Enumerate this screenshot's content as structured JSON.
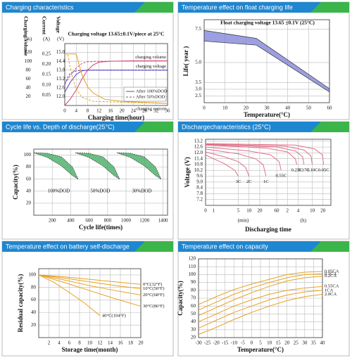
{
  "chart_data": [
    {
      "type": "line",
      "title": "Charging characteristics",
      "subtitle": "Charging voltage 13.65±0.1V/piece at 25°C",
      "xlabel": "Charging time(hour)",
      "xlim": [
        0,
        36
      ],
      "xticks": [
        0,
        4,
        8,
        12,
        16,
        20,
        24,
        28,
        32,
        36
      ],
      "grid": true,
      "ylabel": "Charging Volume",
      "yunit": "(%)",
      "ylim": [
        0,
        140
      ],
      "yticks": [
        20,
        40,
        60,
        80,
        100,
        120
      ],
      "y2label": "Current",
      "y2unit": "(A)",
      "y2lim": [
        0,
        0.3
      ],
      "y2ticks": [
        0.05,
        {
          "value": 0.1,
          "label": "0.10"
        },
        0.15,
        {
          "value": 0.2,
          "label": "0.20"
        },
        0.25
      ],
      "y3label": "Voltage",
      "y3unit": "(V)",
      "y3lim": [
        11.4,
        15.6
      ],
      "y3ticks": [
        {
          "value": 12,
          "label": "12.0"
        },
        12.6,
        13.2,
        13.8,
        14.4,
        {
          "value": 15,
          "label": "15.0"
        }
      ],
      "line_styles": [
        {
          "label": "After 100%DOD",
          "dash": "solid"
        },
        {
          "label": "After 50%DOD",
          "dash": "dashed"
        }
      ],
      "series": [
        {
          "name": "charging volume",
          "color": "#d8406a",
          "axis": "y",
          "dash": "solid",
          "x": [
            0,
            2,
            4,
            6,
            8,
            10,
            12,
            16,
            24,
            36
          ],
          "values": [
            0,
            15,
            35,
            60,
            80,
            92,
            98,
            100,
            101,
            101
          ]
        },
        {
          "color": "#d8406a",
          "axis": "y",
          "dash": "dashed",
          "x": [
            0,
            2,
            4,
            6,
            8,
            12,
            36
          ],
          "values": [
            50,
            68,
            85,
            95,
            99,
            100,
            101
          ]
        },
        {
          "name": "charging voltage",
          "color": "#5a3cc0",
          "axis": "y3",
          "dash": "solid",
          "x": [
            0,
            2,
            4,
            6,
            8,
            12,
            36
          ],
          "values": [
            12.3,
            13.0,
            13.5,
            13.75,
            13.8,
            13.8,
            13.8
          ]
        },
        {
          "color": "#5a3cc0",
          "axis": "y3",
          "dash": "dashed",
          "x": [
            0,
            1,
            2,
            4,
            8,
            36
          ],
          "values": [
            12.8,
            13.3,
            13.6,
            13.75,
            13.8,
            13.8
          ]
        },
        {
          "name": "charging current",
          "color": "#e0a020",
          "axis": "y2",
          "dash": "solid",
          "x": [
            0,
            4,
            5,
            6,
            8,
            10,
            14,
            20,
            28,
            36
          ],
          "values": [
            0.25,
            0.25,
            0.2,
            0.15,
            0.09,
            0.06,
            0.03,
            0.02,
            0.015,
            0.01
          ]
        },
        {
          "color": "#e0a020",
          "axis": "y2",
          "dash": "dashed",
          "x": [
            0,
            1,
            2,
            3,
            4,
            6,
            10,
            36
          ],
          "values": [
            0.25,
            0.25,
            0.18,
            0.12,
            0.08,
            0.04,
            0.02,
            0.01
          ]
        }
      ]
    },
    {
      "type": "band",
      "title": "Temperature effect on float charging life",
      "subtitle": "Float charging voltage  13.65 ±0.1V (25°C)",
      "xlabel": "Temperature(°C)",
      "xlim": [
        0,
        60
      ],
      "xticks": [
        0,
        10,
        20,
        30,
        40,
        50,
        60
      ],
      "grid": true,
      "ylabel": "Life( year )",
      "ylim": [
        2,
        8.2
      ],
      "yticks": [
        2.5,
        {
          "value": 3,
          "label": "3.0"
        },
        3.5,
        {
          "value": 5,
          "label": "5.0"
        },
        7.5
      ],
      "series": [
        {
          "color": "#7b7fd6",
          "x": [
            0,
            25,
            60
          ],
          "upper": [
            7.4,
            6.8,
            3.05
          ],
          "lower": [
            6.6,
            6.3,
            2.8
          ]
        }
      ]
    },
    {
      "type": "band",
      "title": "Cycle life vs. Depth of discharge(25°C)",
      "xlabel": "Cycle life(times)",
      "xlim": [
        0,
        1450
      ],
      "xticks": [
        200,
        400,
        600,
        800,
        1000,
        1200,
        1400
      ],
      "grid": true,
      "ylabel": "Capacity(%)",
      "ylim": [
        0,
        110
      ],
      "yticks": [
        20,
        40,
        60,
        80,
        100
      ],
      "series": [
        {
          "name": "100%DOD",
          "color": "#3aa85a",
          "x": [
            0,
            150,
            300,
            420,
            480
          ],
          "upper": [
            104,
            103,
            97,
            80,
            60
          ],
          "lower": [
            104,
            96,
            82,
            66,
            60
          ]
        },
        {
          "name": "50%DOD",
          "color": "#3aa85a",
          "x": [
            450,
            600,
            750,
            870,
            930
          ],
          "upper": [
            104,
            103,
            97,
            80,
            60
          ],
          "lower": [
            104,
            96,
            82,
            66,
            60
          ]
        },
        {
          "name": "30%DOD",
          "color": "#3aa85a",
          "x": [
            900,
            1050,
            1200,
            1320,
            1380
          ],
          "upper": [
            104,
            103,
            97,
            80,
            60
          ],
          "lower": [
            104,
            96,
            82,
            66,
            60
          ]
        }
      ]
    },
    {
      "type": "line",
      "title": "Dischargecharacteristics (25°C)",
      "xlabel": "Discharging time",
      "xlog": true,
      "xlim": [
        0.6,
        2000
      ],
      "origin_label": "0",
      "xunits": [
        "(min)",
        "(h)"
      ],
      "xticks": [
        1,
        5,
        10,
        20,
        60,
        {
          "value": 120,
          "label": "2"
        },
        {
          "value": 240,
          "label": "4"
        },
        {
          "value": 600,
          "label": "10"
        },
        {
          "value": 1200,
          "label": "20"
        }
      ],
      "grid": true,
      "ylabel": "Voltage (V)",
      "ylim": [
        6.6,
        13.4
      ],
      "yticks": [
        7.2,
        7.8,
        8.4,
        {
          "value": 9,
          "label": "9.0"
        },
        9.6,
        10.2,
        10.8,
        11.4,
        {
          "value": 12,
          "label": "12.0"
        },
        12.6,
        13.2
      ],
      "color": "#e07088",
      "series": [
        {
          "name": "3C",
          "x": [
            0.6,
            1,
            2,
            4,
            5
          ],
          "values": [
            11.8,
            11.4,
            10.9,
            10.2,
            9.6
          ]
        },
        {
          "name": "2C",
          "x": [
            0.6,
            2,
            5,
            8,
            10
          ],
          "values": [
            12.1,
            11.6,
            11.1,
            10.5,
            9.6
          ]
        },
        {
          "name": "1C",
          "x": [
            0.6,
            5,
            15,
            25,
            30
          ],
          "values": [
            12.4,
            11.9,
            11.4,
            10.8,
            9.6
          ]
        },
        {
          "name": "0.55C",
          "x": [
            0.6,
            10,
            40,
            70,
            80
          ],
          "values": [
            12.6,
            12.2,
            11.8,
            11.1,
            10.2
          ]
        },
        {
          "name": "0.25C",
          "x": [
            0.6,
            30,
            120,
            200,
            220
          ],
          "values": [
            12.8,
            12.5,
            12.1,
            11.4,
            10.8
          ]
        },
        {
          "name": "0.17C",
          "x": [
            0.6,
            60,
            200,
            320,
            350
          ],
          "values": [
            12.85,
            12.6,
            12.2,
            11.6,
            10.8
          ]
        },
        {
          "name": "0.10C",
          "x": [
            0.6,
            100,
            350,
            550,
            600
          ],
          "values": [
            12.9,
            12.7,
            12.3,
            11.7,
            10.8
          ]
        },
        {
          "name": "0.05C",
          "x": [
            0.6,
            200,
            700,
            1150,
            1250
          ],
          "values": [
            12.95,
            12.8,
            12.4,
            11.8,
            10.8
          ]
        }
      ]
    },
    {
      "type": "line",
      "title": "Temperature effect on battery self-discharge",
      "xlabel": "Storage time(month)",
      "xlim": [
        0,
        20
      ],
      "xticks": [
        2,
        4,
        6,
        8,
        10,
        12,
        14,
        16,
        18,
        20
      ],
      "grid": true,
      "ylabel": "Residual capacity(%)",
      "ylim": [
        0,
        110
      ],
      "yticks": [
        20,
        40,
        60,
        80,
        100
      ],
      "color": "#e8a020",
      "series": [
        {
          "name": "0°C(32°F)",
          "x": [
            0,
            5,
            10,
            15,
            20
          ],
          "values": [
            100,
            97,
            93,
            89,
            85
          ]
        },
        {
          "name": "10°C(50°F)",
          "x": [
            0,
            5,
            10,
            15,
            20
          ],
          "values": [
            100,
            95,
            89,
            83,
            78
          ]
        },
        {
          "name": "20°C(68°F)",
          "x": [
            0,
            5,
            10,
            15,
            20
          ],
          "values": [
            100,
            92,
            83,
            75,
            68
          ]
        },
        {
          "name": "30°C(86°F)",
          "x": [
            0,
            5,
            10,
            15,
            20
          ],
          "values": [
            100,
            88,
            75,
            62,
            50
          ]
        },
        {
          "name": "40°C(104°F)",
          "x": [
            0,
            3,
            6,
            9,
            12
          ],
          "values": [
            100,
            88,
            72,
            55,
            35
          ]
        }
      ]
    },
    {
      "type": "line",
      "title": "Temperature effect on capacity",
      "xlabel": "Temperature(°C)",
      "xlim": [
        -30,
        40
      ],
      "xticks": [
        -30,
        -25,
        -20,
        -15,
        -10,
        -5,
        0,
        5,
        10,
        15,
        20,
        25,
        30,
        35,
        40
      ],
      "grid": true,
      "ylabel": "Capacity(%)",
      "ylim": [
        20,
        120
      ],
      "yticks": [
        20,
        30,
        40,
        50,
        60,
        70,
        80,
        90,
        100,
        110,
        120
      ],
      "color": "#e8a020",
      "series": [
        {
          "name": "0.05CA",
          "x": [
            -30,
            -20,
            -10,
            0,
            10,
            20,
            30,
            40
          ],
          "values": [
            62,
            72,
            81,
            88,
            94,
            100,
            103,
            104
          ]
        },
        {
          "name": "0.1CA",
          "x": [
            -30,
            -20,
            -10,
            0,
            10,
            20,
            30,
            40
          ],
          "values": [
            55,
            65,
            75,
            83,
            90,
            96,
            100,
            101
          ]
        },
        {
          "name": "0.2CA",
          "x": [
            -30,
            -20,
            -10,
            0,
            10,
            20,
            30,
            40
          ],
          "values": [
            48,
            58,
            68,
            77,
            85,
            92,
            96,
            98
          ]
        },
        {
          "name": "0.55CA",
          "x": [
            -30,
            -20,
            -10,
            0,
            10,
            20,
            30,
            40
          ],
          "values": [
            40,
            50,
            60,
            68,
            75,
            80,
            83,
            85
          ]
        },
        {
          "name": "1CA",
          "x": [
            -30,
            -20,
            -10,
            0,
            10,
            20,
            30,
            40
          ],
          "values": [
            32,
            42,
            52,
            60,
            68,
            74,
            78,
            80
          ]
        },
        {
          "name": "2.0CA",
          "x": [
            -30,
            -20,
            -10,
            0,
            10,
            20,
            30,
            40
          ],
          "values": [
            24,
            33,
            43,
            52,
            60,
            67,
            72,
            75
          ]
        }
      ]
    }
  ]
}
